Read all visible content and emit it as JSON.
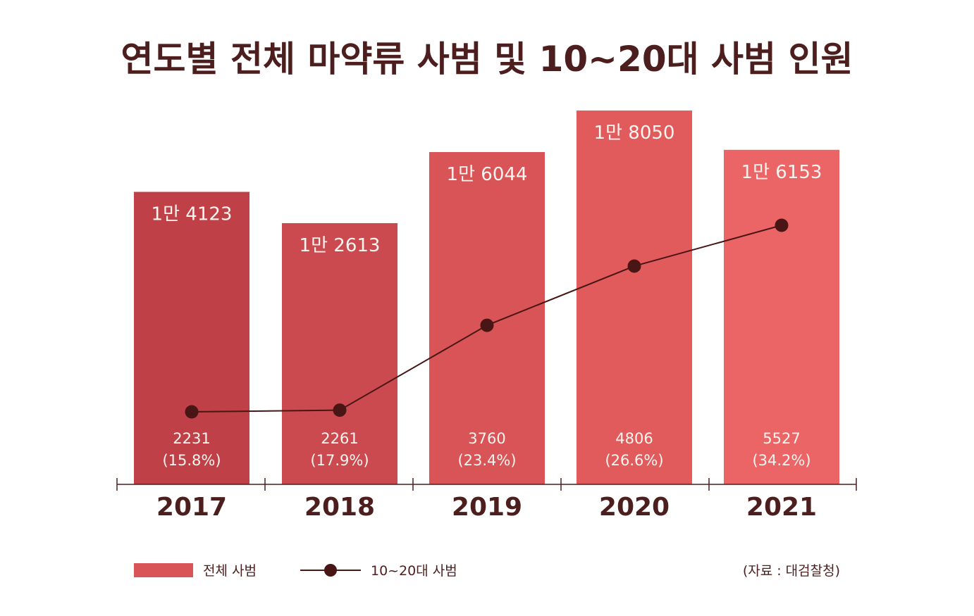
{
  "chart_data": {
    "type": "bar",
    "title": "연도별 전체 마약류 사범 및 10~20대 사범 인원",
    "categories": [
      "2017",
      "2018",
      "2019",
      "2020",
      "2021"
    ],
    "series": [
      {
        "name": "전체 사범",
        "type": "bar",
        "values": [
          14123,
          12613,
          16044,
          18050,
          16153
        ],
        "labels": [
          "1만 4123",
          "1만 2613",
          "1만 6044",
          "1만 8050",
          "1만 6153"
        ]
      },
      {
        "name": "10~20대 사범",
        "type": "line",
        "values": [
          2231,
          2261,
          3760,
          4806,
          5527
        ],
        "labels": [
          "2231",
          "2261",
          "3760",
          "4806",
          "5527"
        ],
        "shares": [
          "(15.8%)",
          "(17.9%)",
          "(23.4%)",
          "(26.6%)",
          "(34.2%)"
        ]
      }
    ],
    "bar_colors": [
      "#c04047",
      "#cb4a50",
      "#d85456",
      "#e25b5c",
      "#ec6566"
    ],
    "line_color": "#4a1515",
    "text_color": "#4d1e1e",
    "source": "(자료 : 대검찰청)",
    "legend_position": "bottom",
    "grid": false
  }
}
